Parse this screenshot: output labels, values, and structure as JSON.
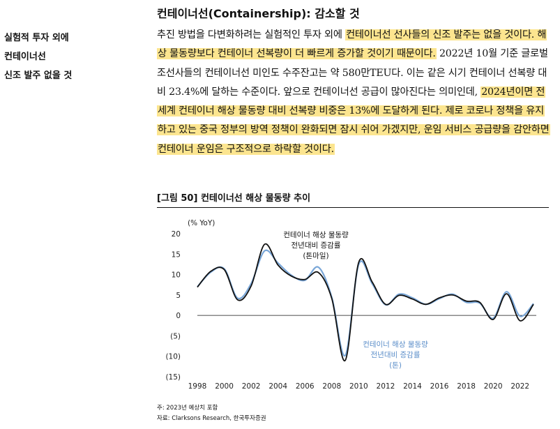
{
  "heading": "컨테이너선(Containership): 감소할 것",
  "sidebar_lines": [
    "실험적 투자 외에",
    "컨테이너선",
    "신조 발주 없을 것"
  ],
  "paragraph": [
    {
      "text": "추진 방법을 다변화하려는 실험적인 투자 외에 ",
      "hl": false
    },
    {
      "text": "컨테이너선 선사들의 신조 발주는 없을 것이다. 해상 물동량보다 컨테이너 선복량이 더 빠르게 증가할 것이기 때문이다.",
      "hl": true
    },
    {
      "text": " 2022년 10월 기준 글로벌 조선사들의 컨테이너선 미인도 수주잔고는 약 580만TEU다. 이는 같은 시기 컨테이너 선복량 대비 23.4%에 달하는 수준이다. 앞으로 컨테이너선 공급이 많아진다는 의미인데, ",
      "hl": false
    },
    {
      "text": "2024년이면 전세계 컨테이너 해상 물동량 대비 선복량 비중은 13%에 도달하게 된다. 제로 코로나 정책을 유지하고 있는 중국 정부의 방역 정책이 완화되면 잠시 쉬어 가겠지만, 운임 서비스 공급량을 감안하면 컨테이너 운임은 구조적으로 하락할 것이다.",
      "hl": true
    }
  ],
  "figure_title": "[그림 50] 컨테이너선 해상 물동량 추이",
  "note": "주: 2023년 예상치 포함",
  "source": "자료: Clarksons Research, 한국투자증권",
  "colors": {
    "highlight": "#fce58f",
    "series_blue": "#7aa7d8",
    "series_black": "#111111"
  },
  "chart_data": {
    "type": "line",
    "ylabel": "(% YoY)",
    "ylim": [
      -15,
      20
    ],
    "yticks": [
      20,
      15,
      10,
      5,
      0,
      -5,
      -10,
      -15
    ],
    "ytick_labels": [
      "20",
      "15",
      "10",
      "5",
      "0",
      "(5)",
      "(10)",
      "(15)"
    ],
    "xlim": [
      1998,
      2023
    ],
    "xticks": [
      1998,
      2000,
      2002,
      2004,
      2006,
      2008,
      2010,
      2012,
      2014,
      2016,
      2018,
      2020,
      2022
    ],
    "grid": false,
    "x": [
      1998,
      1999,
      2000,
      2001,
      2002,
      2003,
      2004,
      2005,
      2006,
      2007,
      2008,
      2009,
      2010,
      2011,
      2012,
      2013,
      2014,
      2015,
      2016,
      2017,
      2018,
      2019,
      2020,
      2021,
      2022,
      2023
    ],
    "series": [
      {
        "name": "컨테이너 해상 물동량 전년대비 증감률 (톤마일)",
        "color": "#111111",
        "values": [
          6.9,
          10.8,
          11.2,
          3.8,
          7.2,
          17.4,
          12.3,
          9.6,
          8.8,
          10.5,
          4.1,
          -11,
          13,
          8.2,
          2.7,
          4.9,
          4,
          2.7,
          4.3,
          5,
          3.5,
          3.2,
          -1,
          5.3,
          -1.3,
          2.7
        ]
      },
      {
        "name": "컨테이너 해상 물동량 전년대비 증감률 (톤)",
        "color": "#7aa7d8",
        "values": [
          7,
          10.6,
          11.4,
          4.2,
          7.8,
          15.8,
          12.8,
          9.8,
          8.6,
          11.8,
          4.4,
          -9.8,
          12.5,
          7.8,
          2.6,
          5.2,
          4.3,
          2.7,
          4.1,
          5.2,
          3.2,
          3,
          -0.7,
          5.8,
          -0.2,
          2.9
        ]
      }
    ],
    "annotations": [
      {
        "lines": [
          "컨테이너 해상 물동량",
          "전년대비 증감률",
          "(톤마일)"
        ],
        "color": "#111111"
      },
      {
        "lines": [
          "컨테이너 해상 물동량",
          "전년대비 증감률",
          "(톤)"
        ],
        "color": "#5b8ec9"
      }
    ]
  }
}
